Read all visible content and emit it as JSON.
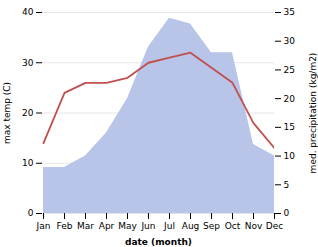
{
  "chart_data": {
    "type": "line",
    "categories": [
      "Jan",
      "Feb",
      "Mar",
      "Apr",
      "May",
      "Jun",
      "Jul",
      "Aug",
      "Sep",
      "Oct",
      "Nov",
      "Dec"
    ],
    "series": [
      {
        "type": "area",
        "axis": "y2",
        "color": "#b8c4e8",
        "values": [
          8,
          8,
          10,
          14,
          20,
          29,
          34,
          33,
          28,
          28,
          12,
          10
        ]
      },
      {
        "type": "line",
        "color": "#c0504d",
        "values": [
          14,
          24,
          26,
          26,
          27,
          30,
          31,
          32,
          29,
          26,
          18,
          13
        ]
      }
    ],
    "xlabel": "date (month)",
    "ylabel": "max temp (C)",
    "y2label": "med. precipitation (kg/m2)",
    "ylim": [
      0,
      40
    ],
    "yticks": [
      0,
      10,
      20,
      30,
      40
    ],
    "y2lim": [
      0,
      35
    ],
    "y2ticks": [
      0,
      5,
      10,
      15,
      20,
      25,
      30,
      35
    ],
    "grid": true
  }
}
